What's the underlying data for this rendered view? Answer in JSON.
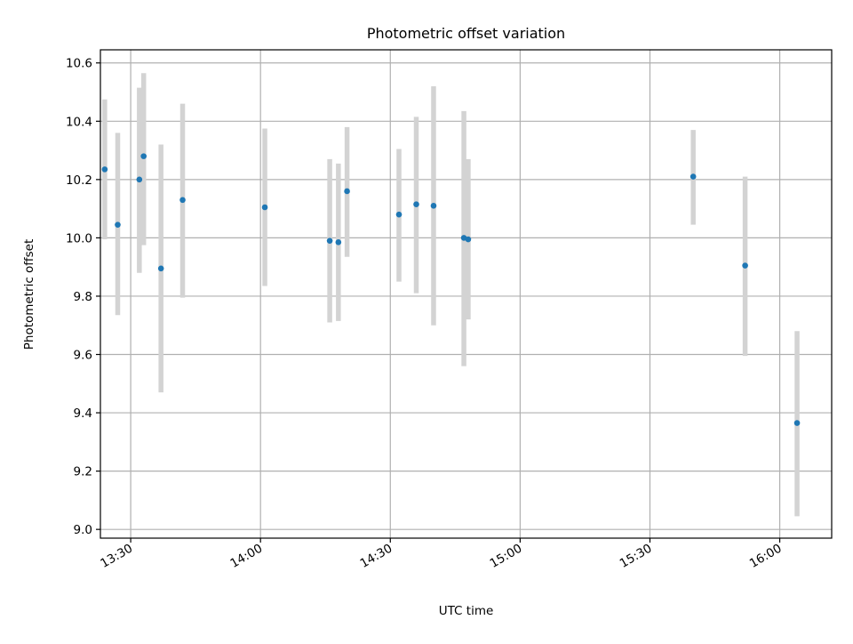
{
  "chart_data": {
    "type": "scatter",
    "title": "Photometric offset variation",
    "xlabel": "UTC time",
    "ylabel": "Photometric offset",
    "grid": true,
    "xlim": [
      "13:23",
      "16:12"
    ],
    "ylim": [
      8.97,
      10.645
    ],
    "x_ticks": [
      "13:30",
      "14:00",
      "14:30",
      "15:00",
      "15:30",
      "16:00"
    ],
    "y_ticks": [
      9.0,
      9.2,
      9.4,
      9.6,
      9.8,
      10.0,
      10.2,
      10.4,
      10.6
    ],
    "marker_color": "#1f77b4",
    "errorbar_color": "#d3d3d3",
    "series": [
      {
        "x": [
          "13:24",
          "13:27",
          "13:32",
          "13:33",
          "13:37",
          "13:42",
          "14:01",
          "14:16",
          "14:18",
          "14:20",
          "14:32",
          "14:36",
          "14:40",
          "14:47",
          "14:48",
          "15:40",
          "15:52",
          "16:04"
        ],
        "y": [
          10.235,
          10.045,
          10.2,
          10.28,
          9.895,
          10.13,
          10.105,
          9.99,
          9.985,
          10.16,
          10.08,
          10.115,
          10.11,
          10.0,
          9.995,
          10.21,
          9.905,
          9.365
        ],
        "err_low": [
          9.995,
          9.735,
          9.88,
          9.975,
          9.47,
          9.795,
          9.835,
          9.71,
          9.715,
          9.935,
          9.85,
          9.81,
          9.7,
          9.56,
          9.72,
          10.045,
          9.595,
          9.045
        ],
        "err_high": [
          10.475,
          10.36,
          10.515,
          10.565,
          10.32,
          10.46,
          10.375,
          10.27,
          10.255,
          10.38,
          10.305,
          10.415,
          10.52,
          10.435,
          10.27,
          10.37,
          10.21,
          9.68
        ]
      }
    ]
  }
}
